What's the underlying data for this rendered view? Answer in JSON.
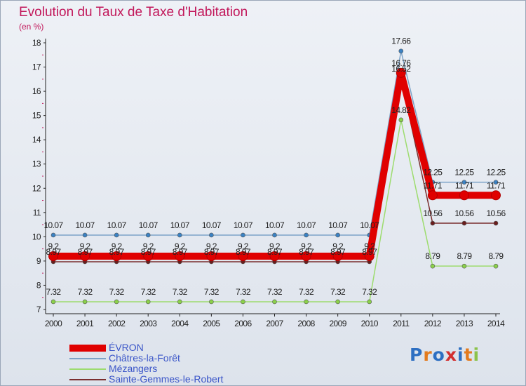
{
  "title": "Evolution du Taux de Taxe d'Habitation",
  "unit": "(en %)",
  "logo": [
    "P",
    "r",
    "o",
    "x",
    "i",
    "t",
    "i"
  ],
  "colors": {
    "title": "#c2185b",
    "logo": [
      "#2d6fc2",
      "#e37b1e",
      "#2d6fc2",
      "#d32f2f",
      "#2d6fc2",
      "#e37b1e",
      "#8bc34a"
    ]
  },
  "chart_data": {
    "type": "line",
    "x": [
      "2000",
      "2001",
      "2002",
      "2003",
      "2004",
      "2005",
      "2006",
      "2007",
      "2008",
      "2009",
      "2010",
      "2011",
      "2012",
      "2013",
      "2014"
    ],
    "ylim": [
      7,
      18
    ],
    "yticks": [
      "7",
      "8",
      "9",
      "10",
      "11",
      "12",
      "13",
      "14",
      "15",
      "16",
      "17",
      "18"
    ],
    "grid": false,
    "legend_position": "bottom-left",
    "series": [
      {
        "name": "Châtres-la-Forêt",
        "color": "#7da3c8",
        "marker": "#3b82c4",
        "values": [
          10.07,
          10.07,
          10.07,
          10.07,
          10.07,
          10.07,
          10.07,
          10.07,
          10.07,
          10.07,
          10.07,
          17.66,
          12.25,
          12.25,
          12.25
        ],
        "labels": [
          "10.07",
          "10.07",
          "10.07",
          "10.07",
          "10.07",
          "10.07",
          "10.07",
          "10.07",
          "10.07",
          "10.07",
          "10.07",
          "17.66",
          "12.25",
          "12.25",
          "12.25"
        ]
      },
      {
        "name": "Mézangers",
        "color": "#9ddc6e",
        "marker": "#8bd14a",
        "values": [
          7.32,
          7.32,
          7.32,
          7.32,
          7.32,
          7.32,
          7.32,
          7.32,
          7.32,
          7.32,
          7.32,
          14.82,
          8.79,
          8.79,
          8.79
        ],
        "labels": [
          "7.32",
          "7.32",
          "7.32",
          "7.32",
          "7.32",
          "7.32",
          "7.32",
          "7.32",
          "7.32",
          "7.32",
          "7.32",
          "14.82",
          "8.79",
          "8.79",
          "8.79"
        ]
      },
      {
        "name": "Sainte-Gemmes-le-Robert",
        "color": "#7a2e2e",
        "marker": "#6b1d1d",
        "values": [
          8.97,
          8.97,
          8.97,
          8.97,
          8.97,
          8.97,
          8.97,
          8.97,
          8.97,
          8.97,
          8.97,
          16.52,
          10.56,
          10.56,
          10.56
        ],
        "labels": [
          "8.97",
          "8.97",
          "8.97",
          "8.97",
          "8.97",
          "8.97",
          "8.97",
          "8.97",
          "8.97",
          "8.97",
          "8.97",
          "16.52",
          "10.56",
          "10.56",
          "10.56"
        ]
      },
      {
        "name": "ÉVRON",
        "color": "#e00000",
        "marker": "#e00000",
        "values": [
          9.2,
          9.2,
          9.2,
          9.2,
          9.2,
          9.2,
          9.2,
          9.2,
          9.2,
          9.2,
          9.2,
          16.76,
          11.71,
          11.71,
          11.71
        ],
        "labels": [
          "9.2",
          "9.2",
          "9.2",
          "9.2",
          "9.2",
          "9.2",
          "9.2",
          "9.2",
          "9.2",
          "9.2",
          "9.2",
          "16.76",
          "11.71",
          "11.71",
          "11.71"
        ]
      }
    ],
    "legend": [
      {
        "name": "ÉVRON",
        "color": "#e00000"
      },
      {
        "name": "Châtres-la-Forêt",
        "color": "#7da3c8"
      },
      {
        "name": "Mézangers",
        "color": "#9ddc6e"
      },
      {
        "name": "Sainte-Gemmes-le-Robert",
        "color": "#7a2e2e"
      }
    ]
  }
}
